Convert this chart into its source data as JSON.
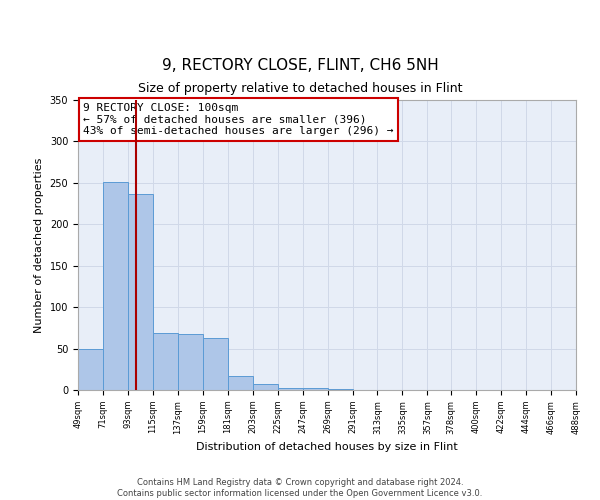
{
  "title": "9, RECTORY CLOSE, FLINT, CH6 5NH",
  "subtitle": "Size of property relative to detached houses in Flint",
  "xlabel": "Distribution of detached houses by size in Flint",
  "ylabel": "Number of detached properties",
  "bar_color": "#aec6e8",
  "bar_edge_color": "#5b9bd5",
  "vline_x": 100,
  "vline_color": "#aa0000",
  "annotation_lines": [
    "9 RECTORY CLOSE: 100sqm",
    "← 57% of detached houses are smaller (396)",
    "43% of semi-detached houses are larger (296) →"
  ],
  "annotation_box_color": "#ffffff",
  "annotation_box_edge_color": "#cc0000",
  "bin_edges": [
    49,
    71,
    93,
    115,
    137,
    159,
    181,
    203,
    225,
    247,
    269,
    291,
    313,
    335,
    357,
    378,
    400,
    422,
    444,
    466,
    488
  ],
  "bin_heights": [
    50,
    251,
    237,
    69,
    68,
    63,
    17,
    7,
    3,
    3,
    1,
    0,
    0,
    0,
    0,
    0,
    0,
    0,
    0,
    0
  ],
  "ylim": [
    0,
    350
  ],
  "yticks": [
    0,
    50,
    100,
    150,
    200,
    250,
    300,
    350
  ],
  "footer_lines": [
    "Contains HM Land Registry data © Crown copyright and database right 2024.",
    "Contains public sector information licensed under the Open Government Licence v3.0."
  ],
  "background_color": "#ffffff",
  "grid_color": "#d0d8e8",
  "ax_facecolor": "#e8eef8",
  "title_fontsize": 11,
  "subtitle_fontsize": 9,
  "ylabel_fontsize": 8,
  "xlabel_fontsize": 8,
  "tick_fontsize": 6,
  "annotation_fontsize": 8,
  "footer_fontsize": 6
}
